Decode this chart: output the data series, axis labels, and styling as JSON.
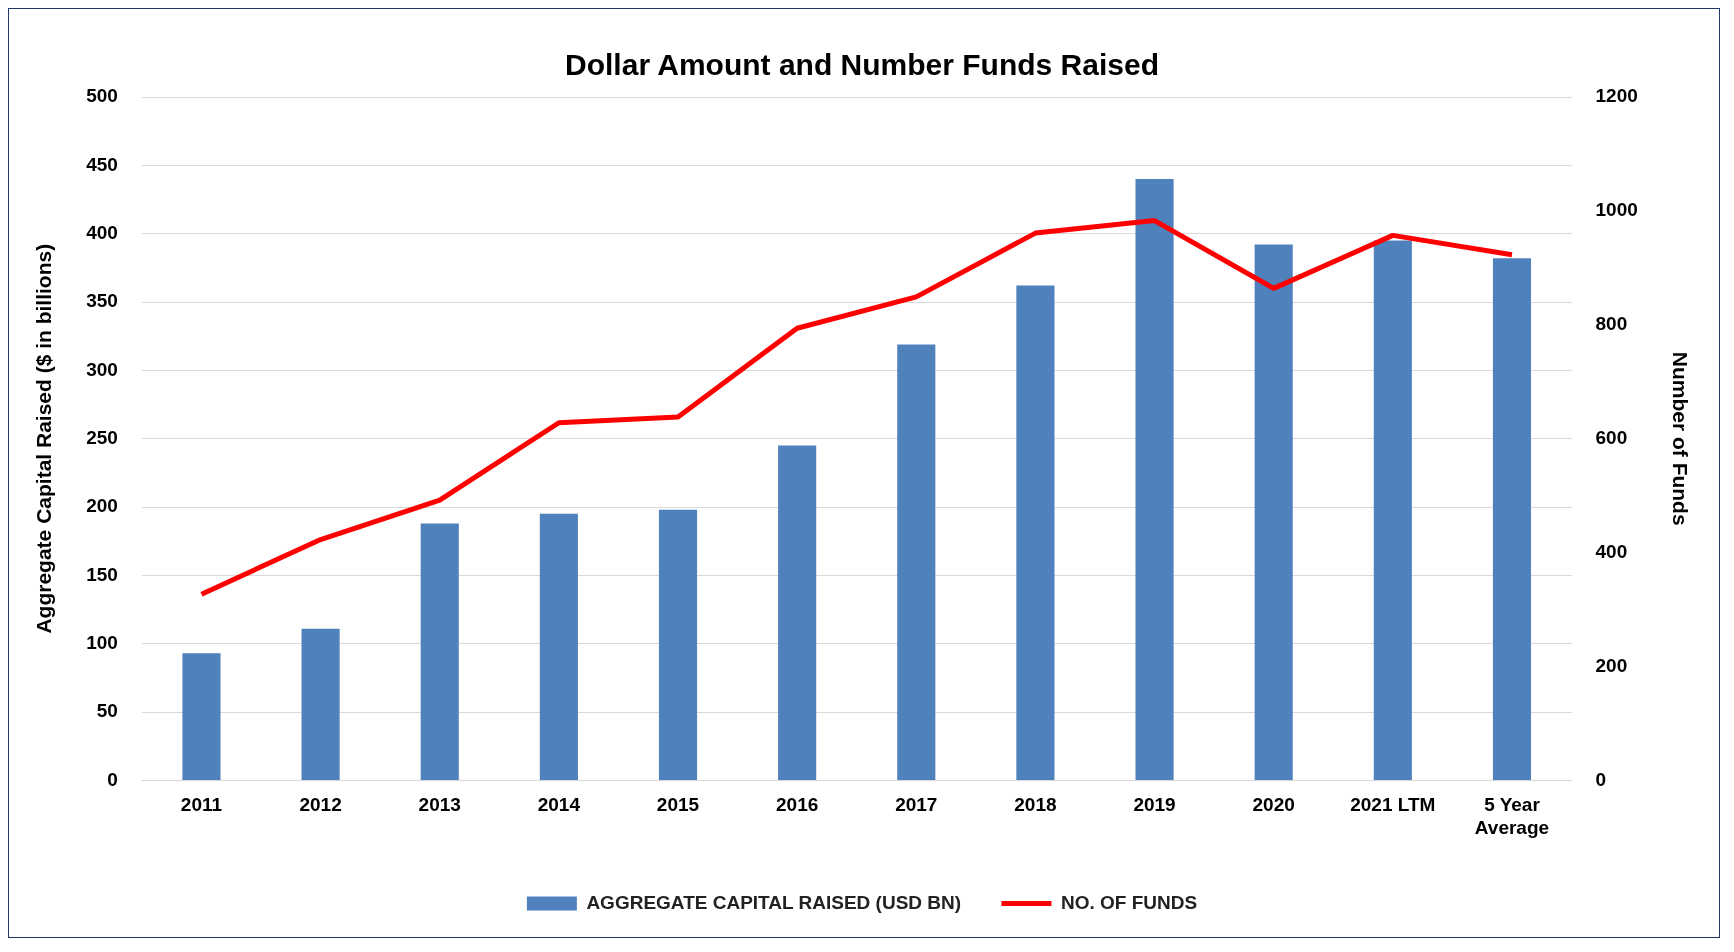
{
  "chart_data": {
    "type": "bar",
    "title": "Dollar Amount and Number Funds Raised",
    "ylabel": "Aggregate Capital Raised ($ in billions)",
    "y2label": "Number of Funds",
    "categories": [
      "2011",
      "2012",
      "2013",
      "2014",
      "2015",
      "2016",
      "2017",
      "2018",
      "2019",
      "2020",
      "2021 LTM",
      "5 Year Average"
    ],
    "series": [
      {
        "name": "AGGREGATE CAPITAL RAISED (USD BN)",
        "color": "#4f81bd",
        "values": [
          93,
          111,
          188,
          195,
          198,
          245,
          319,
          362,
          440,
          392,
          395,
          382
        ]
      },
      {
        "name": "NO. OF FUNDS",
        "type": "line",
        "axis": "y2",
        "color": "#ff0000",
        "values": [
          327,
          423,
          492,
          628,
          638,
          794,
          849,
          961,
          983,
          864,
          957,
          923
        ]
      }
    ],
    "ylim": [
      0,
      500
    ],
    "yticks": [
      0,
      50,
      100,
      150,
      200,
      250,
      300,
      350,
      400,
      450,
      500
    ],
    "y2lim": [
      0,
      1200
    ],
    "y2ticks": [
      0,
      200,
      400,
      600,
      800,
      1000,
      1200
    ],
    "grid": "y",
    "legend": "bottom",
    "marker": "none"
  }
}
